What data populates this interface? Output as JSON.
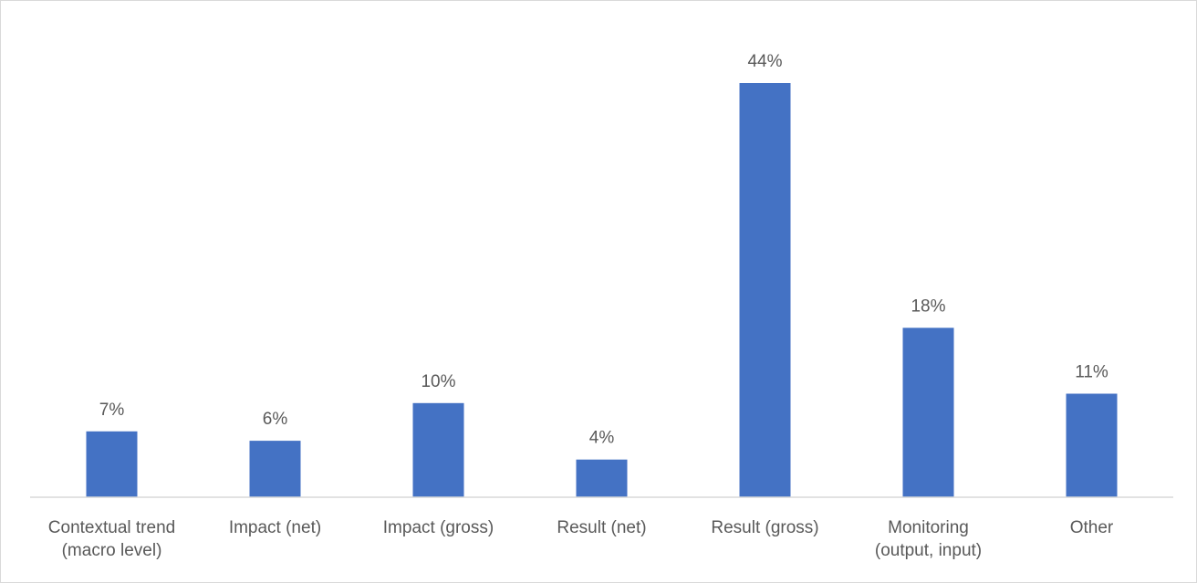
{
  "chart_data": {
    "type": "bar",
    "title": "",
    "xlabel": "",
    "ylabel": "",
    "categories": [
      "Contextual trend (macro level)",
      "Impact (net)",
      "Impact (gross)",
      "Result (net)",
      "Result (gross)",
      "Monitoring (output, input)",
      "Other"
    ],
    "category_label_lines": [
      [
        "Contextual trend",
        "(macro level)"
      ],
      [
        "Impact (net)"
      ],
      [
        "Impact (gross)"
      ],
      [
        "Result (net)"
      ],
      [
        "Result (gross)"
      ],
      [
        "Monitoring",
        "(output, input)"
      ],
      [
        "Other"
      ]
    ],
    "values": [
      7,
      6,
      10,
      4,
      44,
      18,
      11
    ],
    "data_labels": [
      "7%",
      "6%",
      "10%",
      "4%",
      "44%",
      "18%",
      "11%"
    ],
    "unit": "%",
    "ylim": [
      0,
      44
    ],
    "grid": false,
    "legend": "none",
    "bar_color": "#4472c4",
    "text_color": "#595959",
    "axis_color": "#d9d9d9"
  }
}
